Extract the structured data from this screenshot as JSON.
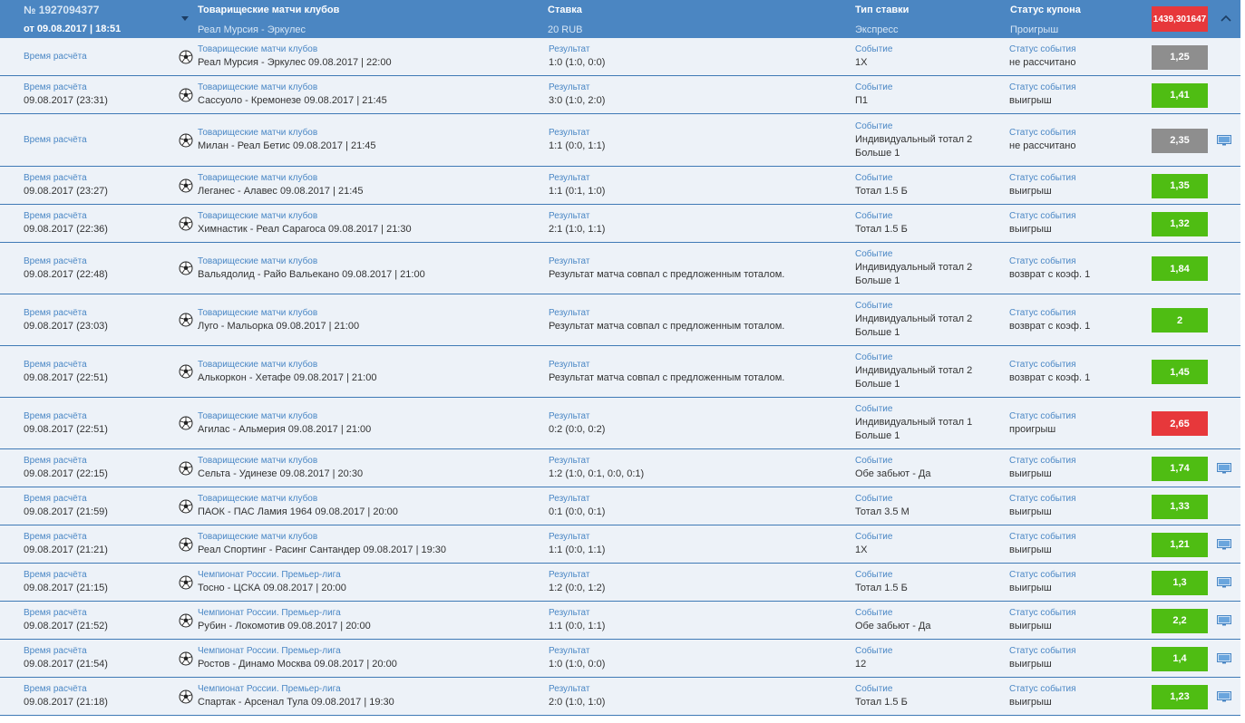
{
  "header": {
    "coupon_number": "№ 1927094377",
    "date": "от 09.08.2017 | 18:51",
    "tournament": "Товарищеские матчи клубов",
    "match": "Реал Мурсия - Эркулес",
    "stake_label": "Ставка",
    "stake_value": "20 RUB",
    "bet_type_label": "Тип ставки",
    "bet_type_value": "Экспресс",
    "coupon_status_label": "Статус купона",
    "coupon_status_value": "Проигрыш",
    "total_odds": "1439,301647",
    "icons": {
      "expand": "chevron-down-icon",
      "collapse": "chevron-up-icon"
    }
  },
  "labels": {
    "settle_time": "Время расчёта",
    "result": "Результат",
    "event": "Событие",
    "event_status": "Статус события"
  },
  "colors": {
    "header": "#4b86c2",
    "win": "#4fbd13",
    "loss": "#e7383b",
    "pending": "#8e8e8e",
    "row_bg": "#edf2f8",
    "label": "#4a87c5"
  },
  "rows": [
    {
      "time": "",
      "tournament": "Товарищеские матчи клубов",
      "match": "Реал Мурсия - Эркулес 09.08.2017 | 22:00",
      "result": "1:0 (1:0, 0:0)",
      "event": [
        "1X"
      ],
      "status": "не рассчитано",
      "odds": "1,25",
      "state": "pending",
      "tv": false
    },
    {
      "time": "09.08.2017 (23:31)",
      "tournament": "Товарищеские матчи клубов",
      "match": "Сассуоло - Кремонезе 09.08.2017 | 21:45",
      "result": "3:0 (1:0, 2:0)",
      "event": [
        "П1"
      ],
      "status": "выигрыш",
      "odds": "1,41",
      "state": "win",
      "tv": false
    },
    {
      "time": "",
      "tournament": "Товарищеские матчи клубов",
      "match": "Милан - Реал Бетис 09.08.2017 | 21:45",
      "result": "1:1 (0:0, 1:1)",
      "event": [
        "Индивидуальный тотал 2",
        "Больше 1"
      ],
      "status": "не рассчитано",
      "odds": "2,35",
      "state": "pending",
      "tv": true
    },
    {
      "time": "09.08.2017 (23:27)",
      "tournament": "Товарищеские матчи клубов",
      "match": "Леганес - Алавес 09.08.2017 | 21:45",
      "result": "1:1 (0:1, 1:0)",
      "event": [
        "Тотал 1.5 Б"
      ],
      "status": "выигрыш",
      "odds": "1,35",
      "state": "win",
      "tv": false
    },
    {
      "time": "09.08.2017 (22:36)",
      "tournament": "Товарищеские матчи клубов",
      "match": "Химнастик - Реал Сарагоса 09.08.2017 | 21:30",
      "result": "2:1 (1:0, 1:1)",
      "event": [
        "Тотал 1.5 Б"
      ],
      "status": "выигрыш",
      "odds": "1,32",
      "state": "win",
      "tv": false
    },
    {
      "time": "09.08.2017 (22:48)",
      "tournament": "Товарищеские матчи клубов",
      "match": "Вальядолид - Райо Вальекано 09.08.2017 | 21:00",
      "result": "Результат матча совпал с предложенным тоталом.",
      "event": [
        "Индивидуальный тотал 2",
        "Больше 1"
      ],
      "status": "возврат с коэф. 1",
      "odds": "1,84",
      "state": "win",
      "tv": false
    },
    {
      "time": "09.08.2017 (23:03)",
      "tournament": "Товарищеские матчи клубов",
      "match": "Луго - Мальорка 09.08.2017 | 21:00",
      "result": "Результат матча совпал с предложенным тоталом.",
      "event": [
        "Индивидуальный тотал 2",
        "Больше 1"
      ],
      "status": "возврат с коэф. 1",
      "odds": "2",
      "state": "win",
      "tv": false
    },
    {
      "time": "09.08.2017 (22:51)",
      "tournament": "Товарищеские матчи клубов",
      "match": "Алькоркон - Хетафе 09.08.2017 | 21:00",
      "result": "Результат матча совпал с предложенным тоталом.",
      "event": [
        "Индивидуальный тотал 2",
        "Больше 1"
      ],
      "status": "возврат с коэф. 1",
      "odds": "1,45",
      "state": "win",
      "tv": false
    },
    {
      "time": "09.08.2017 (22:51)",
      "tournament": "Товарищеские матчи клубов",
      "match": "Агилас - Альмерия 09.08.2017 | 21:00",
      "result": "0:2 (0:0, 0:2)",
      "event": [
        "Индивидуальный тотал 1",
        "Больше 1"
      ],
      "status": "проигрыш",
      "odds": "2,65",
      "state": "loss",
      "tv": false
    },
    {
      "time": "09.08.2017 (22:15)",
      "tournament": "Товарищеские матчи клубов",
      "match": "Сельта - Удинезе 09.08.2017 | 20:30",
      "result": "1:2 (1:0, 0:1, 0:0, 0:1)",
      "event": [
        "Обе забьют - Да"
      ],
      "status": "выигрыш",
      "odds": "1,74",
      "state": "win",
      "tv": true
    },
    {
      "time": "09.08.2017 (21:59)",
      "tournament": "Товарищеские матчи клубов",
      "match": "ПАОК - ПАС Ламия 1964 09.08.2017 | 20:00",
      "result": "0:1 (0:0, 0:1)",
      "event": [
        "Тотал 3.5 М"
      ],
      "status": "выигрыш",
      "odds": "1,33",
      "state": "win",
      "tv": false
    },
    {
      "time": "09.08.2017 (21:21)",
      "tournament": "Товарищеские матчи клубов",
      "match": "Реал Спортинг - Расинг Сантандер 09.08.2017 | 19:30",
      "result": "1:1 (0:0, 1:1)",
      "event": [
        "1X"
      ],
      "status": "выигрыш",
      "odds": "1,21",
      "state": "win",
      "tv": true
    },
    {
      "time": "09.08.2017 (21:15)",
      "tournament": "Чемпионат России. Премьер-лига",
      "match": "Тосно - ЦСКА 09.08.2017 | 20:00",
      "result": "1:2 (0:0, 1:2)",
      "event": [
        "Тотал 1.5 Б"
      ],
      "status": "выигрыш",
      "odds": "1,3",
      "state": "win",
      "tv": true
    },
    {
      "time": "09.08.2017 (21:52)",
      "tournament": "Чемпионат России. Премьер-лига",
      "match": "Рубин - Локомотив 09.08.2017 | 20:00",
      "result": "1:1 (0:0, 1:1)",
      "event": [
        "Обе забьют - Да"
      ],
      "status": "выигрыш",
      "odds": "2,2",
      "state": "win",
      "tv": true
    },
    {
      "time": "09.08.2017 (21:54)",
      "tournament": "Чемпионат России. Премьер-лига",
      "match": "Ростов - Динамо Москва 09.08.2017 | 20:00",
      "result": "1:0 (1:0, 0:0)",
      "event": [
        "12"
      ],
      "status": "выигрыш",
      "odds": "1,4",
      "state": "win",
      "tv": true
    },
    {
      "time": "09.08.2017 (21:18)",
      "tournament": "Чемпионат России. Премьер-лига",
      "match": "Спартак - Арсенал Тула 09.08.2017 | 19:30",
      "result": "2:0 (1:0, 1:0)",
      "event": [
        "Тотал 1.5 Б"
      ],
      "status": "выигрыш",
      "odds": "1,23",
      "state": "win",
      "tv": true
    }
  ]
}
